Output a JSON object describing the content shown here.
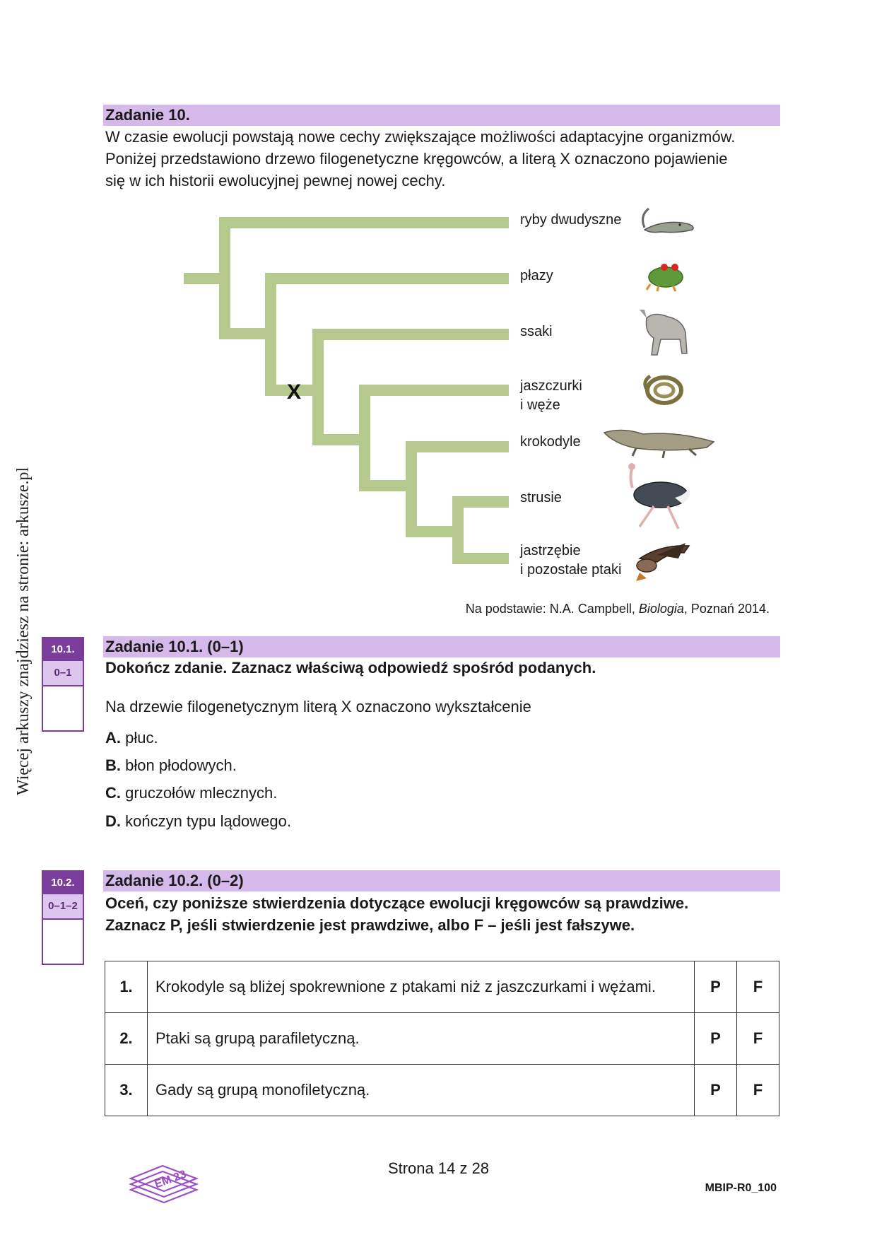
{
  "side_note": "Więcej arkuszy znajdziesz na stronie: arkusze.pl",
  "task10": {
    "title": "Zadanie 10.",
    "intro": [
      "W czasie ewolucji powstają nowe cechy zwiększające możliwości adaptacyjne organizmów.",
      "Poniżej przedstawiono drzewo filogenetyczne kręgowców, a literą X oznaczono pojawienie",
      "się w ich historii ewolucyjnej pewnej nowej cechy."
    ]
  },
  "tree": {
    "branch_color": "#b5c98e",
    "marker": "X",
    "taxa": [
      {
        "line1": "ryby dwudyszne",
        "line2": "",
        "icon": "lungfish-icon"
      },
      {
        "line1": "płazy",
        "line2": "",
        "icon": "frog-icon"
      },
      {
        "line1": "ssaki",
        "line2": "",
        "icon": "wolf-icon"
      },
      {
        "line1": "jaszczurki",
        "line2": "i węże",
        "icon": "snake-icon"
      },
      {
        "line1": "krokodyle",
        "line2": "",
        "icon": "crocodile-icon"
      },
      {
        "line1": "strusie",
        "line2": "",
        "icon": "ostrich-icon"
      },
      {
        "line1": "jastrzębie",
        "line2": "i pozostałe ptaki",
        "icon": "hawk-icon"
      }
    ],
    "source_prefix": "Na podstawie: N.A. Campbell, ",
    "source_book": "Biologia",
    "source_suffix": ", Poznań 2014."
  },
  "task10_1": {
    "box_number": "10.1.",
    "box_points": "0–1",
    "title": "Zadanie 10.1. (0–1)",
    "instruction": "Dokończ zdanie. Zaznacz właściwą odpowiedź spośród podanych.",
    "stem": "Na drzewie filogenetycznym literą X oznaczono wykształcenie",
    "options": [
      {
        "letter": "A.",
        "text": " płuc."
      },
      {
        "letter": "B.",
        "text": " błon płodowych."
      },
      {
        "letter": "C.",
        "text": " gruczołów mlecznych."
      },
      {
        "letter": "D.",
        "text": " kończyn typu lądowego."
      }
    ]
  },
  "task10_2": {
    "box_number": "10.2.",
    "box_points": "0–1–2",
    "title": "Zadanie 10.2. (0–2)",
    "instruction1": "Oceń, czy poniższe stwierdzenia dotyczące ewolucji kręgowców są prawdziwe.",
    "instruction2": "Zaznacz P, jeśli stwierdzenie jest prawdziwe, albo F – jeśli jest fałszywe.",
    "rows": [
      {
        "num": "1.",
        "text": "Krokodyle są bliżej spokrewnione z ptakami niż z jaszczurkami i wężami.",
        "p": "P",
        "f": "F"
      },
      {
        "num": "2.",
        "text": "Ptaki są grupą parafiletyczną.",
        "p": "P",
        "f": "F"
      },
      {
        "num": "3.",
        "text": "Gady są grupą monofiletyczną.",
        "p": "P",
        "f": "F"
      }
    ]
  },
  "footer": {
    "logo_text": "EM 23",
    "page": "Strona 14 z 28",
    "code": "MBIP-R0_100"
  }
}
